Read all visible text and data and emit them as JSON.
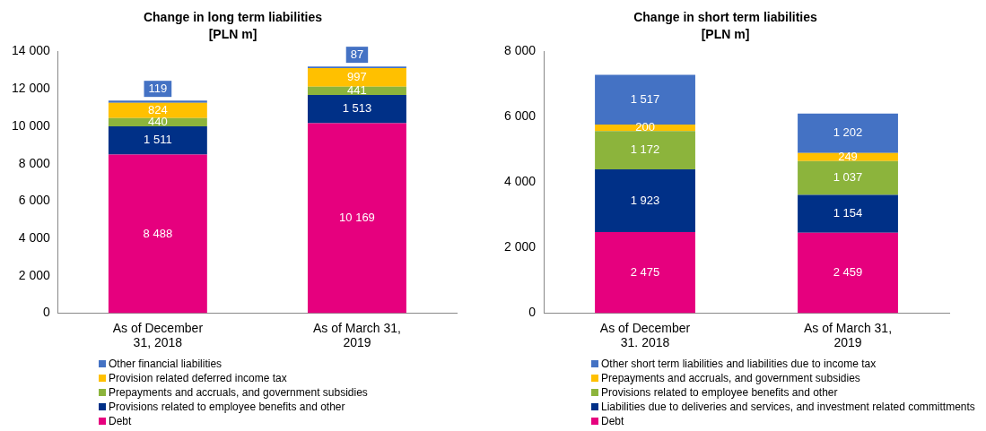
{
  "chart_data": [
    {
      "type": "bar",
      "title": "Change in long term liabilities",
      "subtitle": "[PLN m]",
      "stacked": true,
      "legend": "bottom",
      "grid": false,
      "categories": [
        "As of December 31, 2018",
        "As of March 31, 2019"
      ],
      "ylim": [
        0,
        14000
      ],
      "yticks": [
        {
          "value": 0,
          "label": "0"
        },
        {
          "value": 2000,
          "label": "2 000"
        },
        {
          "value": 4000,
          "label": "4 000"
        },
        {
          "value": 6000,
          "label": "6 000"
        },
        {
          "value": 8000,
          "label": "8 000"
        },
        {
          "value": 10000,
          "label": "10 000"
        },
        {
          "value": 12000,
          "label": "12 000"
        },
        {
          "value": 14000,
          "label": "14 000"
        }
      ],
      "series": [
        {
          "name": "Debt",
          "color": "#e6007e",
          "values": [
            8488,
            10169
          ],
          "value_labels": [
            "8 488",
            "10 169"
          ]
        },
        {
          "name": "Provisions related to employee benefits and other",
          "color": "#003087",
          "values": [
            1511,
            1513
          ],
          "value_labels": [
            "1 511",
            "1 513"
          ]
        },
        {
          "name": "Prepayments and accruals, and government subsidies",
          "color": "#8cb43c",
          "values": [
            440,
            441
          ],
          "value_labels": [
            "440",
            "441"
          ]
        },
        {
          "name": "Provision related deferred income tax",
          "color": "#ffc000",
          "values": [
            824,
            997
          ],
          "value_labels": [
            "824",
            "997"
          ]
        },
        {
          "name": "Other financial liabilities",
          "color": "#4472c4",
          "values": [
            119,
            87
          ],
          "value_labels": [
            "119",
            "87"
          ]
        }
      ]
    },
    {
      "type": "bar",
      "title": "Change in short term liabilities",
      "subtitle": "[PLN m]",
      "stacked": true,
      "legend": "bottom",
      "grid": false,
      "categories": [
        "As of December 31. 2018",
        "As of March 31, 2019"
      ],
      "ylim": [
        0,
        8000
      ],
      "yticks": [
        {
          "value": 0,
          "label": "0"
        },
        {
          "value": 2000,
          "label": "2 000"
        },
        {
          "value": 4000,
          "label": "4 000"
        },
        {
          "value": 6000,
          "label": "6 000"
        },
        {
          "value": 8000,
          "label": "8 000"
        }
      ],
      "series": [
        {
          "name": "Debt",
          "color": "#e6007e",
          "values": [
            2475,
            2459
          ],
          "value_labels": [
            "2 475",
            "2 459"
          ]
        },
        {
          "name": "Liabilities due to deliveries and services, and investment related committments",
          "color": "#003087",
          "values": [
            1923,
            1154
          ],
          "value_labels": [
            "1 923",
            "1 154"
          ]
        },
        {
          "name": "Provisions related to employee benefits and other",
          "color": "#8cb43c",
          "values": [
            1172,
            1037
          ],
          "value_labels": [
            "1 172",
            "1 037"
          ]
        },
        {
          "name": "Prepayments and accruals, and government subsidies",
          "color": "#ffc000",
          "values": [
            200,
            249
          ],
          "value_labels": [
            "200",
            "249"
          ]
        },
        {
          "name": "Other short term liabilities and liabilities due to income tax",
          "color": "#4472c4",
          "values": [
            1517,
            1202
          ],
          "value_labels": [
            "1 517",
            "1 202"
          ]
        }
      ]
    }
  ]
}
